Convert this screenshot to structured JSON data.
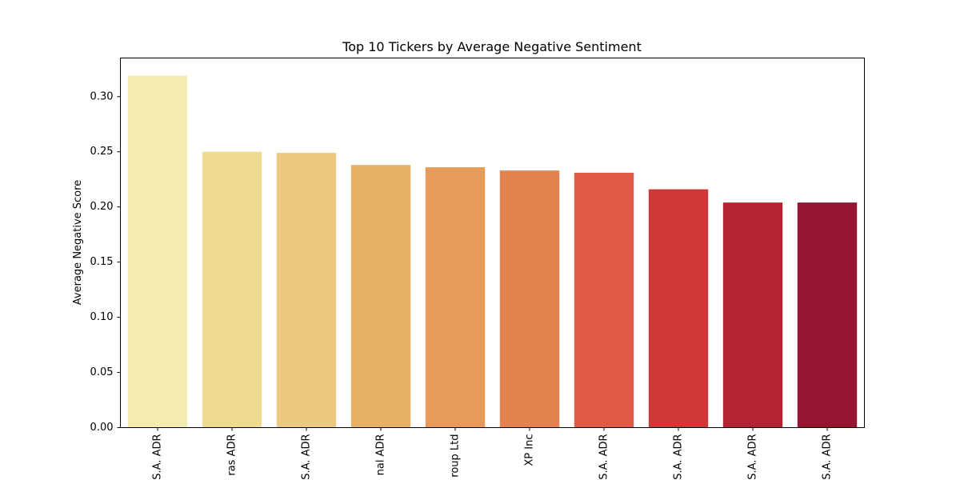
{
  "chart_data": {
    "type": "bar",
    "title": "Top 10 Tickers by Average Negative Sentiment",
    "xlabel": "",
    "ylabel": "Average Negative Score",
    "categories": [
      "S.A. ADR",
      "ras ADR",
      "S.A. ADR",
      "nal ADR",
      "roup Ltd",
      "XP Inc",
      "S.A. ADR",
      "S.A. ADR",
      "S.A. ADR",
      "S.A. ADR"
    ],
    "values": [
      0.319,
      0.25,
      0.249,
      0.238,
      0.236,
      0.233,
      0.231,
      0.216,
      0.204,
      0.204
    ],
    "colors": [
      "#f5eab0",
      "#f0da92",
      "#ebc980",
      "#e7b063",
      "#e69b5a",
      "#e3814f",
      "#df5b43",
      "#ce3936",
      "#b42332",
      "#961631"
    ],
    "ylim": [
      0,
      0.335
    ],
    "yticks": [
      "0.00",
      "0.05",
      "0.10",
      "0.15",
      "0.20",
      "0.25",
      "0.30"
    ],
    "ytick_values": [
      0,
      0.05,
      0.1,
      0.15,
      0.2,
      0.25,
      0.3
    ],
    "grid": false
  }
}
